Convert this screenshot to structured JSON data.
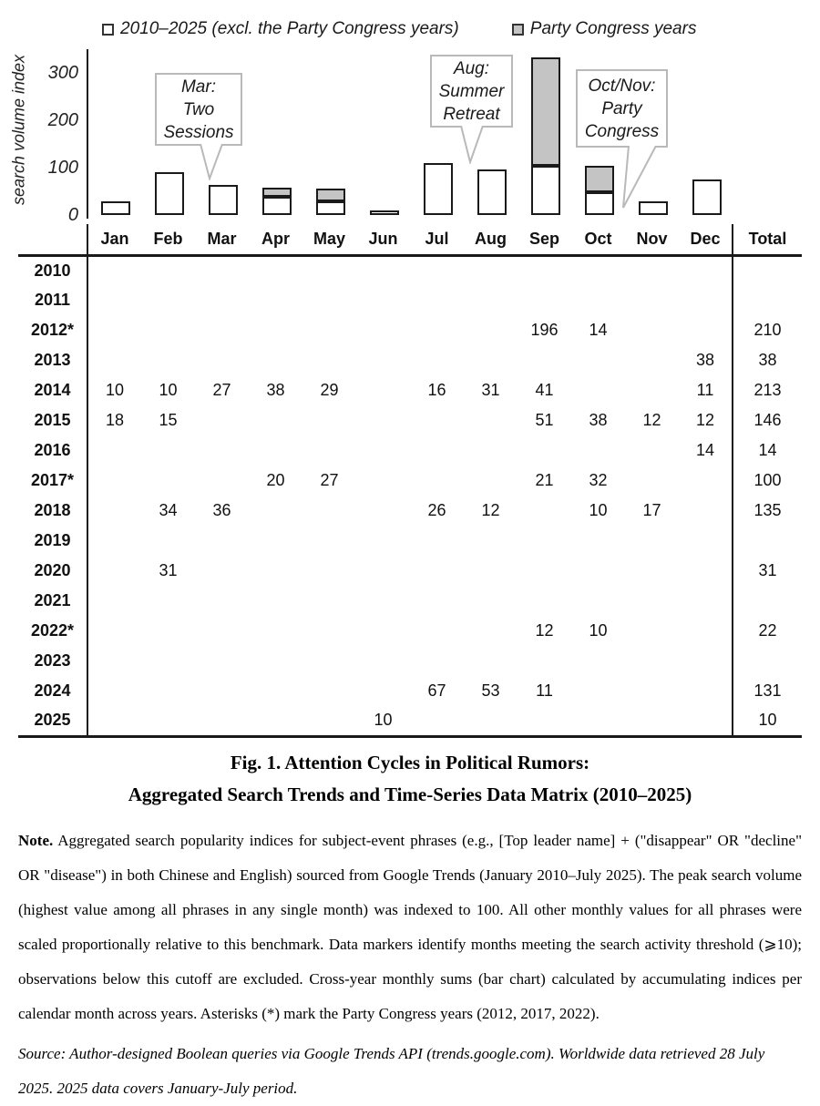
{
  "chart_data": {
    "type": "bar",
    "stacked": true,
    "categories": [
      "Jan",
      "Feb",
      "Mar",
      "Apr",
      "May",
      "Jun",
      "Jul",
      "Aug",
      "Sep",
      "Oct",
      "Nov",
      "Dec"
    ],
    "series": [
      {
        "name": "2010–2025 (excl. the Party Congress years)",
        "color": "#ffffff",
        "values": [
          28,
          90,
          63,
          38,
          29,
          10,
          109,
          96,
          103,
          48,
          29,
          75
        ]
      },
      {
        "name": "Party Congress years",
        "color": "#c4c4c4",
        "values": [
          0,
          0,
          0,
          20,
          27,
          0,
          0,
          0,
          229,
          56,
          0,
          0
        ]
      }
    ],
    "title": "",
    "xlabel": "",
    "ylabel": "search volume index",
    "yticks": [
      0,
      100,
      200,
      300
    ],
    "ylim": [
      0,
      345
    ],
    "grid": false,
    "legend_position": "top",
    "annotations": [
      {
        "text": "Mar:\nTwo\nSessions",
        "target": "Mar"
      },
      {
        "text": "Aug:\nSummer\nRetreat",
        "target": "Aug"
      },
      {
        "text": "Oct/Nov:\nParty\nCongress",
        "target": "Oct/Nov"
      }
    ]
  },
  "table": {
    "columns": [
      "Jan",
      "Feb",
      "Mar",
      "Apr",
      "May",
      "Jun",
      "Jul",
      "Aug",
      "Sep",
      "Oct",
      "Nov",
      "Dec",
      "Total"
    ],
    "rows": [
      {
        "year": "2010",
        "values": [
          "",
          "",
          "",
          "",
          "",
          "",
          "",
          "",
          "",
          "",
          "",
          ""
        ],
        "total": ""
      },
      {
        "year": "2011",
        "values": [
          "",
          "",
          "",
          "",
          "",
          "",
          "",
          "",
          "",
          "",
          "",
          ""
        ],
        "total": ""
      },
      {
        "year": "2012*",
        "values": [
          "",
          "",
          "",
          "",
          "",
          "",
          "",
          "",
          "196",
          "14",
          "",
          ""
        ],
        "total": "210"
      },
      {
        "year": "2013",
        "values": [
          "",
          "",
          "",
          "",
          "",
          "",
          "",
          "",
          "",
          "",
          "",
          "38"
        ],
        "total": "38"
      },
      {
        "year": "2014",
        "values": [
          "10",
          "10",
          "27",
          "38",
          "29",
          "",
          "16",
          "31",
          "41",
          "",
          "",
          "11"
        ],
        "total": "213"
      },
      {
        "year": "2015",
        "values": [
          "18",
          "15",
          "",
          "",
          "",
          "",
          "",
          "",
          "51",
          "38",
          "12",
          "12"
        ],
        "total": "146"
      },
      {
        "year": "2016",
        "values": [
          "",
          "",
          "",
          "",
          "",
          "",
          "",
          "",
          "",
          "",
          "",
          "14"
        ],
        "total": "14"
      },
      {
        "year": "2017*",
        "values": [
          "",
          "",
          "",
          "20",
          "27",
          "",
          "",
          "",
          "21",
          "32",
          "",
          ""
        ],
        "total": "100"
      },
      {
        "year": "2018",
        "values": [
          "",
          "34",
          "36",
          "",
          "",
          "",
          "26",
          "12",
          "",
          "10",
          "17",
          ""
        ],
        "total": "135"
      },
      {
        "year": "2019",
        "values": [
          "",
          "",
          "",
          "",
          "",
          "",
          "",
          "",
          "",
          "",
          "",
          ""
        ],
        "total": ""
      },
      {
        "year": "2020",
        "values": [
          "",
          "31",
          "",
          "",
          "",
          "",
          "",
          "",
          "",
          "",
          "",
          ""
        ],
        "total": "31"
      },
      {
        "year": "2021",
        "values": [
          "",
          "",
          "",
          "",
          "",
          "",
          "",
          "",
          "",
          "",
          "",
          ""
        ],
        "total": ""
      },
      {
        "year": "2022*",
        "values": [
          "",
          "",
          "",
          "",
          "",
          "",
          "",
          "",
          "12",
          "10",
          "",
          ""
        ],
        "total": "22"
      },
      {
        "year": "2023",
        "values": [
          "",
          "",
          "",
          "",
          "",
          "",
          "",
          "",
          "",
          "",
          "",
          ""
        ],
        "total": ""
      },
      {
        "year": "2024",
        "values": [
          "",
          "",
          "",
          "",
          "",
          "",
          "67",
          "53",
          "11",
          "",
          "",
          ""
        ],
        "total": "131"
      },
      {
        "year": "2025",
        "values": [
          "",
          "",
          "",
          "",
          "",
          "10",
          "",
          "",
          "",
          "",
          "",
          ""
        ],
        "total": "10"
      }
    ]
  },
  "caption": {
    "line1": "Fig. 1. Attention Cycles in Political Rumors:",
    "line2": "Aggregated Search Trends and Time-Series Data Matrix (2010–2025)"
  },
  "note": {
    "label": "Note.",
    "text": "Aggregated search popularity indices for subject-event phrases (e.g., [Top leader name] + (\"disappear\" OR \"decline\" OR \"disease\") in both Chinese and English) sourced from Google Trends (January 2010–July 2025). The peak search volume (highest value among all phrases in any single month) was indexed to 100. All other monthly values for all phrases were scaled proportionally relative to this benchmark. Data markers identify months meeting the search activity threshold (⩾10); observations below this cutoff are excluded. Cross-year monthly sums (bar chart) calculated by accumulating indices per calendar month across years. Asterisks (*) mark the Party Congress years (2012, 2017, 2022)."
  },
  "source": {
    "text": "Source: Author-designed Boolean queries via Google Trends API (trends.google.com). Worldwide data retrieved 28 July 2025. 2025 data covers January-July period."
  }
}
